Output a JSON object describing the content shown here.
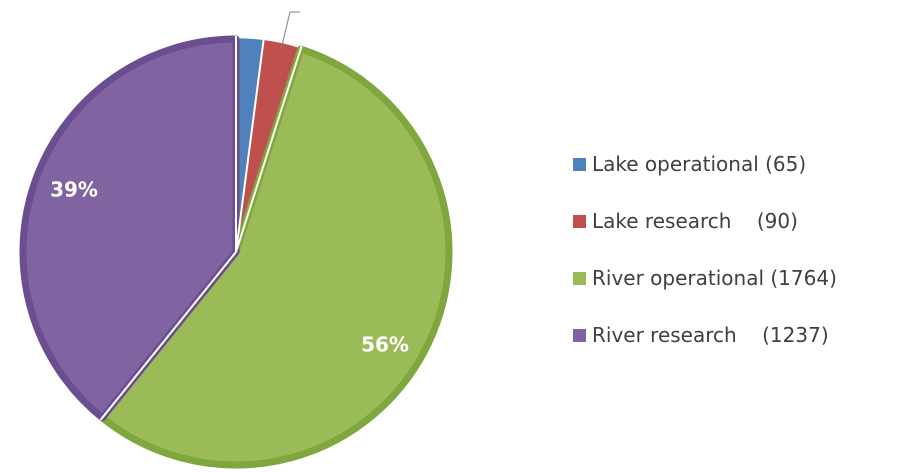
{
  "chart_data": {
    "type": "pie",
    "title": "",
    "categories": [
      "Lake operational",
      "Lake research",
      "River operational",
      "River research"
    ],
    "values": [
      65,
      90,
      1764,
      1237
    ],
    "legend_labels": [
      "Lake operational (65)",
      "Lake research    (90)",
      "River operational (1764)",
      "River research    (1237)"
    ],
    "data_labels": [
      "",
      "",
      "56%",
      "39%"
    ],
    "colors": [
      "#4F81BD",
      "#C0504D",
      "#9BBB59",
      "#8064A2"
    ],
    "border_colors": [
      "#4F81BD",
      "#C0504D",
      "#7FA73D",
      "#6B4E91"
    ],
    "legend_position": "right",
    "start_angle_deg": 0,
    "direction": "clockwise"
  }
}
